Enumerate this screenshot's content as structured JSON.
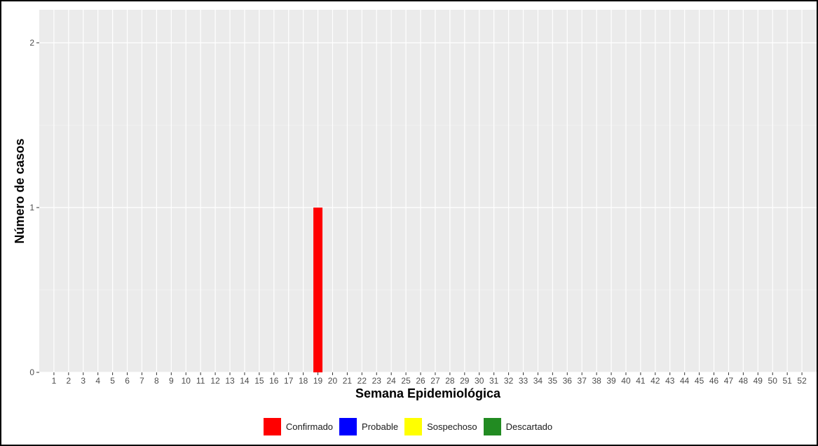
{
  "chart_data": {
    "type": "bar",
    "title": "",
    "xlabel": "Semana Epidemiológica",
    "ylabel": "Número de casos",
    "categories": [
      "1",
      "2",
      "3",
      "4",
      "5",
      "6",
      "7",
      "8",
      "9",
      "10",
      "11",
      "12",
      "13",
      "14",
      "15",
      "16",
      "17",
      "18",
      "19",
      "20",
      "21",
      "22",
      "23",
      "24",
      "25",
      "26",
      "27",
      "28",
      "29",
      "30",
      "31",
      "32",
      "33",
      "34",
      "35",
      "36",
      "37",
      "38",
      "39",
      "40",
      "41",
      "42",
      "43",
      "44",
      "45",
      "46",
      "47",
      "48",
      "49",
      "50",
      "51",
      "52"
    ],
    "series": [
      {
        "name": "Confirmado",
        "color": "#ff0000",
        "values": [
          0,
          0,
          0,
          0,
          0,
          0,
          0,
          0,
          0,
          0,
          0,
          0,
          0,
          0,
          0,
          0,
          0,
          0,
          1,
          0,
          0,
          0,
          0,
          0,
          0,
          0,
          0,
          0,
          0,
          0,
          0,
          0,
          0,
          0,
          0,
          0,
          0,
          0,
          0,
          0,
          0,
          0,
          0,
          0,
          0,
          0,
          0,
          0,
          0,
          0,
          0,
          0
        ]
      },
      {
        "name": "Probable",
        "color": "#0000ff",
        "values": [
          0,
          0,
          0,
          0,
          0,
          0,
          0,
          0,
          0,
          0,
          0,
          0,
          0,
          0,
          0,
          0,
          0,
          0,
          0,
          0,
          0,
          0,
          0,
          0,
          0,
          0,
          0,
          0,
          0,
          0,
          0,
          0,
          0,
          0,
          0,
          0,
          0,
          0,
          0,
          0,
          0,
          0,
          0,
          0,
          0,
          0,
          0,
          0,
          0,
          0,
          0,
          0
        ]
      },
      {
        "name": "Sospechoso",
        "color": "#ffff00",
        "values": [
          0,
          0,
          0,
          0,
          0,
          0,
          0,
          0,
          0,
          0,
          0,
          0,
          0,
          0,
          0,
          0,
          0,
          0,
          0,
          0,
          0,
          0,
          0,
          0,
          0,
          0,
          0,
          0,
          0,
          0,
          0,
          0,
          0,
          0,
          0,
          0,
          0,
          0,
          0,
          0,
          0,
          0,
          0,
          0,
          0,
          0,
          0,
          0,
          0,
          0,
          0,
          0
        ]
      },
      {
        "name": "Descartado",
        "color": "#228b22",
        "values": [
          0,
          0,
          0,
          0,
          0,
          0,
          0,
          0,
          0,
          0,
          0,
          0,
          0,
          0,
          0,
          0,
          0,
          0,
          0,
          0,
          0,
          0,
          0,
          0,
          0,
          0,
          0,
          0,
          0,
          0,
          0,
          0,
          0,
          0,
          0,
          0,
          0,
          0,
          0,
          0,
          0,
          0,
          0,
          0,
          0,
          0,
          0,
          0,
          0,
          0,
          0,
          0
        ]
      }
    ],
    "yticks": [
      0,
      1,
      2
    ],
    "ylim": [
      0,
      2.2
    ],
    "grid": true,
    "legend_position": "bottom",
    "panel_color": "#ebebeb"
  }
}
